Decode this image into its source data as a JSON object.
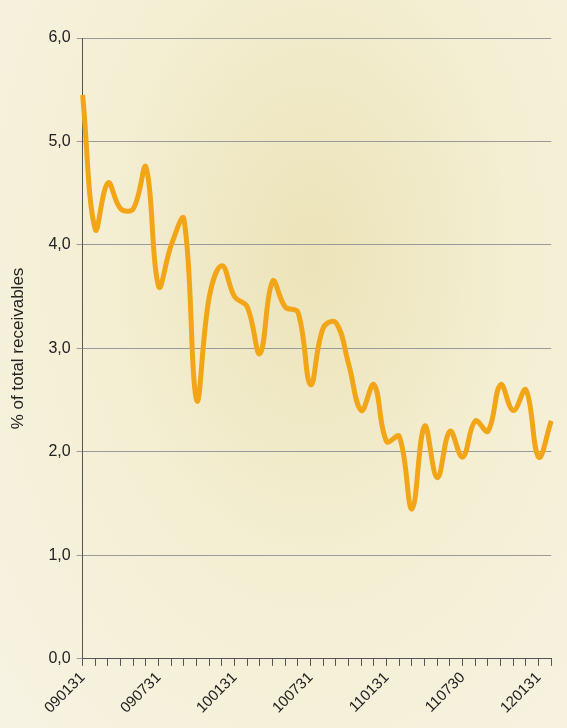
{
  "chart_data": {
    "type": "line",
    "y_label": "% of total receivables",
    "categories": [
      "090131",
      null,
      null,
      null,
      null,
      null,
      "090731",
      null,
      null,
      null,
      null,
      null,
      "100131",
      null,
      null,
      null,
      null,
      null,
      "100731",
      null,
      null,
      null,
      null,
      null,
      "110131",
      null,
      null,
      null,
      null,
      null,
      "110730",
      null,
      null,
      null,
      null,
      null,
      "120131",
      null
    ],
    "values": [
      5.45,
      4.15,
      4.6,
      4.35,
      4.35,
      4.75,
      3.6,
      4.0,
      4.25,
      2.5,
      3.5,
      3.8,
      3.5,
      3.4,
      2.95,
      3.65,
      3.4,
      3.35,
      2.65,
      3.2,
      3.25,
      2.85,
      2.4,
      2.65,
      2.1,
      2.15,
      1.45,
      2.25,
      1.75,
      2.2,
      1.95,
      2.3,
      2.2,
      2.65,
      2.4,
      2.6,
      1.95,
      2.3
    ],
    "color": "#f2a516",
    "ylim": [
      0,
      6
    ],
    "yticks": [
      {
        "value": 0,
        "label": "0,0"
      },
      {
        "value": 1,
        "label": "1,0"
      },
      {
        "value": 2,
        "label": "2,0"
      },
      {
        "value": 3,
        "label": "3,0"
      },
      {
        "value": 4,
        "label": "4,0"
      },
      {
        "value": 5,
        "label": "5,0"
      },
      {
        "value": 6,
        "label": "6,0"
      }
    ],
    "grid": true
  }
}
